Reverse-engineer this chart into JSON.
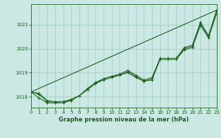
{
  "bg_color": "#cce8e4",
  "grid_color": "#99ccbb",
  "line_color": "#1a5e1a",
  "xlabel": "Graphe pression niveau de la mer (hPa)",
  "xlim": [
    0,
    23
  ],
  "ylim": [
    1017.55,
    1021.85
  ],
  "yticks": [
    1018,
    1019,
    1020,
    1021
  ],
  "xticks": [
    0,
    1,
    2,
    3,
    4,
    5,
    6,
    7,
    8,
    9,
    10,
    11,
    12,
    13,
    14,
    15,
    16,
    17,
    18,
    19,
    20,
    21,
    22,
    23
  ],
  "series": [
    [
      1018.2,
      1018.15,
      1017.85,
      1017.8,
      1017.8,
      1017.9,
      1018.05,
      1018.35,
      1018.6,
      1018.75,
      1018.85,
      1018.9,
      1019.05,
      1018.85,
      1018.65,
      1018.75,
      1019.6,
      1019.6,
      1019.6,
      1020.0,
      1020.1,
      1021.05,
      1020.5,
      1021.55
    ],
    [
      1018.2,
      1018.1,
      1017.8,
      1017.75,
      1017.8,
      1017.85,
      1018.05,
      1018.3,
      1018.55,
      1018.75,
      1018.85,
      1018.95,
      1019.1,
      1018.9,
      1018.7,
      1018.8,
      1019.6,
      1019.6,
      1019.6,
      1020.05,
      1020.15,
      1021.1,
      1020.55,
      1021.6
    ],
    [
      1018.2,
      1017.95,
      1017.75,
      1017.75,
      1017.75,
      1017.85,
      1018.05,
      1018.3,
      1018.55,
      1018.7,
      1018.8,
      1018.9,
      1019.0,
      1018.8,
      1018.65,
      1018.7,
      1019.55,
      1019.55,
      1019.55,
      1019.95,
      1020.05,
      1020.95,
      1020.45,
      1021.45
    ],
    [
      1018.2,
      1021.55
    ]
  ],
  "trend": [
    1018.2,
    1021.6
  ],
  "trend_x": [
    0,
    23
  ]
}
